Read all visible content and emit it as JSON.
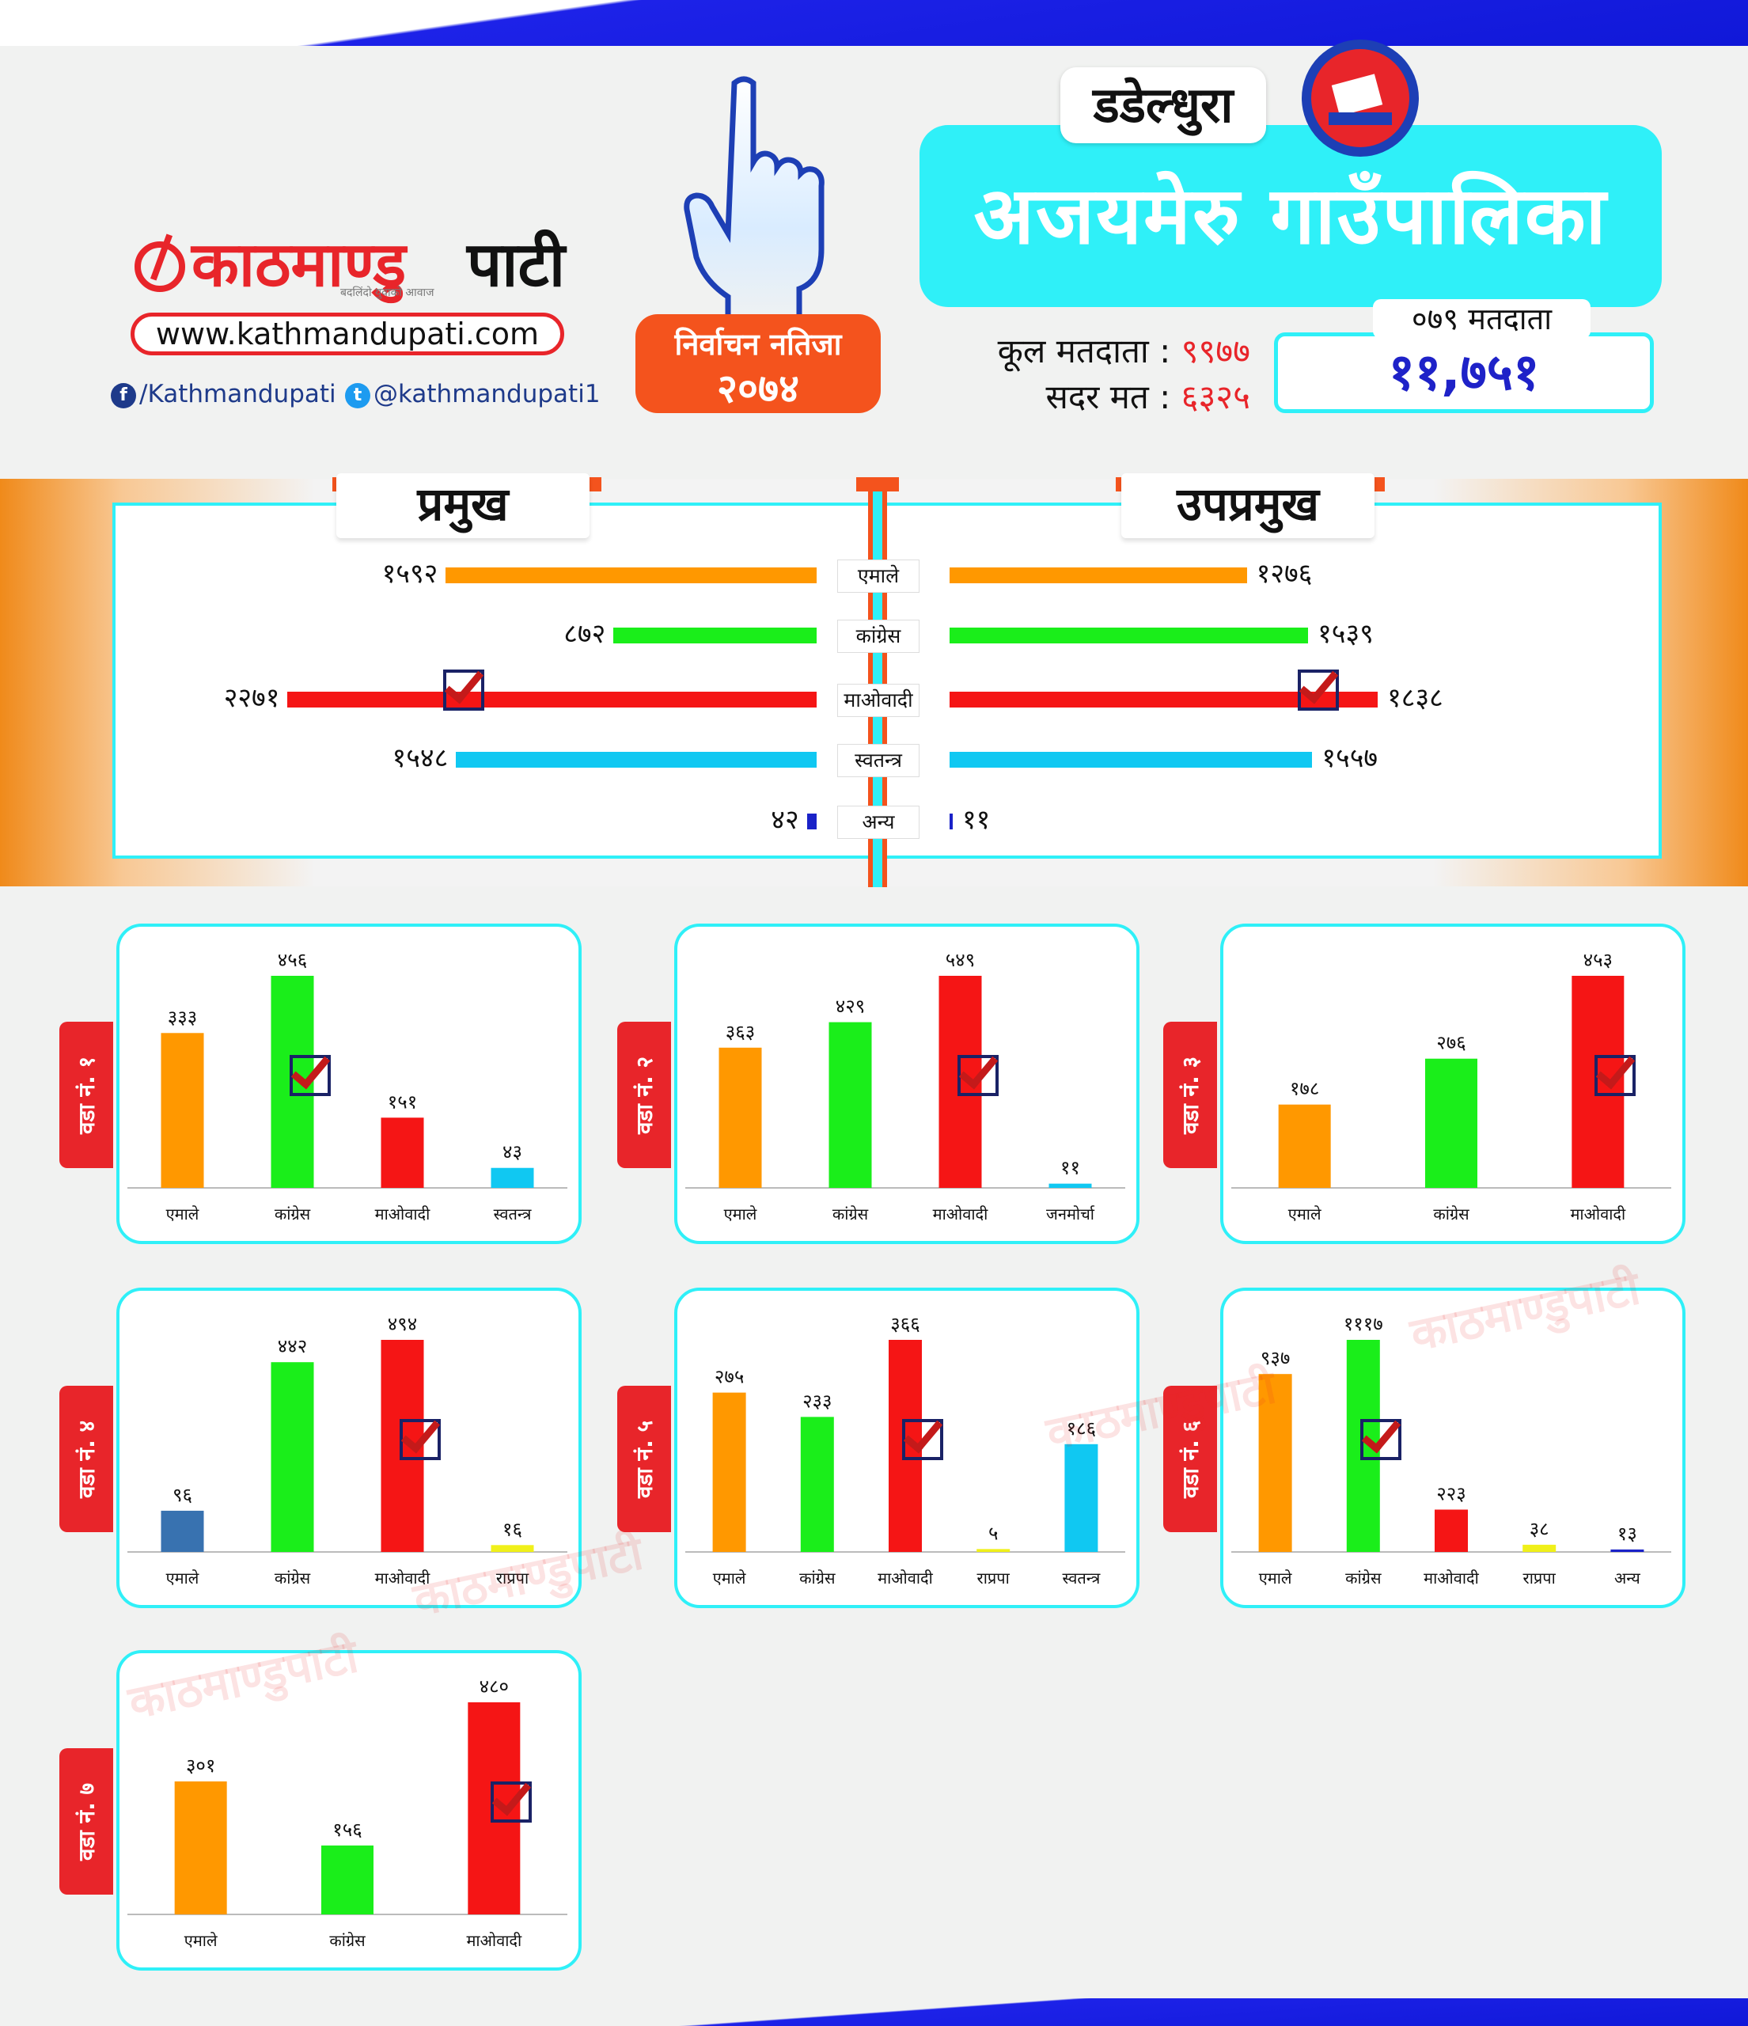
{
  "brand": {
    "name_red": "काठमाण्डु",
    "name_black": "पाटी",
    "tagline": "बदलिंदो युवाको आवाज",
    "website": "www.kathmandupati.com",
    "facebook": "/Kathmandupati",
    "twitter": "@kathmandupati1"
  },
  "election": {
    "line1": "निर्वाचन नतिजा",
    "line2": "२०७४"
  },
  "district": "डडेल्धुरा",
  "municipality": "अजयमेरु गाउँपालिका",
  "voters": {
    "total_label": "कूल मतदाता :",
    "total_value": "९९७७",
    "valid_label": "सदर मत :",
    "valid_value": "६३२५",
    "v079_label": "०७९ मतदाता",
    "v079_value": "११,७५१"
  },
  "colors": {
    "uml": "#ff9800",
    "congress": "#1aee1a",
    "maoist": "#f51515",
    "independent": "#10c8f2",
    "other": "#1a22c8",
    "rpp": "#f0f01a",
    "accent": "#2ff0f8",
    "brand_red": "#e8252a",
    "badge_orange": "#f4531d"
  },
  "icons": {
    "finger": "index-finger-icon",
    "ballot": "ballot-box-icon",
    "facebook": "facebook-icon",
    "twitter": "twitter-icon",
    "check": "check-icon"
  },
  "chart_data": [
    {
      "type": "bar",
      "orientation": "horizontal",
      "title": "प्रमुख",
      "categories": [
        "एमाले",
        "कांग्रेस",
        "माओवादी",
        "स्वतन्त्र",
        "अन्य"
      ],
      "values": [
        1592,
        872,
        2271,
        1548,
        42
      ],
      "labels": [
        "१५९२",
        "८७२",
        "२२७१",
        "१५४८",
        "४२"
      ],
      "winner": "माओवादी"
    },
    {
      "type": "bar",
      "orientation": "horizontal",
      "title": "उपप्रमुख",
      "categories": [
        "एमाले",
        "कांग्रेस",
        "माओवादी",
        "स्वतन्त्र",
        "अन्य"
      ],
      "values": [
        1276,
        1539,
        1838,
        1557,
        11
      ],
      "labels": [
        "१२७६",
        "१५३९",
        "१८३८",
        "१५५७",
        "११"
      ],
      "winner": "माओवादी"
    },
    {
      "type": "bar",
      "ward": "वडा नं. १",
      "categories": [
        "एमाले",
        "कांग्रेस",
        "माओवादी",
        "स्वतन्त्र"
      ],
      "values": [
        333,
        456,
        151,
        43
      ],
      "labels": [
        "३३३",
        "४५६",
        "१५१",
        "४३"
      ],
      "colors": [
        "#ff9800",
        "#1aee1a",
        "#f51515",
        "#10c8f2"
      ],
      "winner": "कांग्रेस"
    },
    {
      "type": "bar",
      "ward": "वडा नं. २",
      "categories": [
        "एमाले",
        "कांग्रेस",
        "माओवादी",
        "जनमोर्चा"
      ],
      "values": [
        363,
        429,
        549,
        11
      ],
      "labels": [
        "३६३",
        "४२९",
        "५४९",
        "११"
      ],
      "colors": [
        "#ff9800",
        "#1aee1a",
        "#f51515",
        "#10c8f2"
      ],
      "winner": "माओवादी"
    },
    {
      "type": "bar",
      "ward": "वडा नं. ३",
      "categories": [
        "एमाले",
        "कांग्रेस",
        "माओवादी"
      ],
      "values": [
        178,
        276,
        453
      ],
      "labels": [
        "१७८",
        "२७६",
        "४५३"
      ],
      "colors": [
        "#ff9800",
        "#1aee1a",
        "#f51515"
      ],
      "winner": "माओवादी"
    },
    {
      "type": "bar",
      "ward": "वडा नं. ४",
      "categories": [
        "एमाले",
        "कांग्रेस",
        "माओवादी",
        "राप्रपा"
      ],
      "values": [
        96,
        442,
        494,
        16
      ],
      "labels": [
        "९६",
        "४४२",
        "४९४",
        "१६"
      ],
      "colors": [
        "#3872b0",
        "#1aee1a",
        "#f51515",
        "#f0f01a"
      ],
      "winner": "माओवादी"
    },
    {
      "type": "bar",
      "ward": "वडा नं. ५",
      "categories": [
        "एमाले",
        "कांग्रेस",
        "माओवादी",
        "राप्रपा",
        "स्वतन्त्र"
      ],
      "values": [
        275,
        233,
        366,
        5,
        186
      ],
      "labels": [
        "२७५",
        "२३३",
        "३६६",
        "५",
        "१८६"
      ],
      "colors": [
        "#ff9800",
        "#1aee1a",
        "#f51515",
        "#f0f01a",
        "#10c8f2"
      ],
      "winner": "माओवादी"
    },
    {
      "type": "bar",
      "ward": "वडा नं. ६",
      "categories": [
        "एमाले",
        "कांग्रेस",
        "माओवादी",
        "राप्रपा",
        "अन्य"
      ],
      "values": [
        937,
        1117,
        223,
        38,
        13
      ],
      "labels": [
        "९३७",
        "१११७",
        "२२३",
        "३८",
        "१३"
      ],
      "colors": [
        "#ff9800",
        "#1aee1a",
        "#f51515",
        "#f0f01a",
        "#1a22c8"
      ],
      "winner": "कांग्रेस"
    },
    {
      "type": "bar",
      "ward": "वडा नं. ७",
      "categories": [
        "एमाले",
        "कांग्रेस",
        "माओवादी"
      ],
      "values": [
        301,
        156,
        480
      ],
      "labels": [
        "३०१",
        "१५६",
        "४८०"
      ],
      "colors": [
        "#ff9800",
        "#1aee1a",
        "#f51515"
      ],
      "winner": "माओवादी"
    }
  ]
}
